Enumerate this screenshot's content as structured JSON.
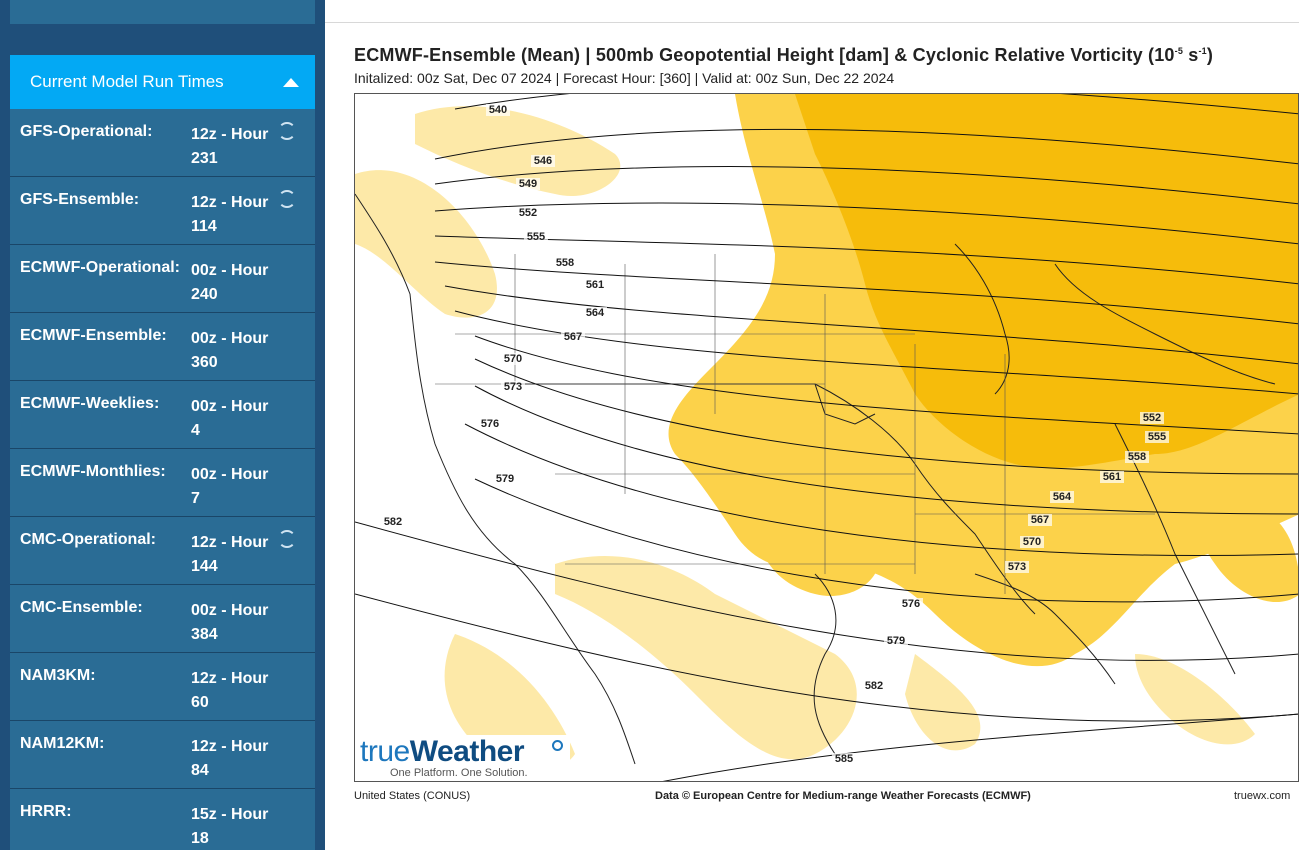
{
  "sidebar": {
    "panel_title": "Current Model Run Times",
    "models": [
      {
        "name": "GFS-Operational:",
        "run": "12z - Hour",
        "hour": "231",
        "loading": true
      },
      {
        "name": "GFS-Ensemble:",
        "run": "12z - Hour",
        "hour": "114",
        "loading": true
      },
      {
        "name": "ECMWF-Operational:",
        "run": "00z - Hour",
        "hour": "240",
        "loading": false
      },
      {
        "name": "ECMWF-Ensemble:",
        "run": "00z - Hour",
        "hour": "360",
        "loading": false
      },
      {
        "name": "ECMWF-Weeklies:",
        "run": "00z - Hour",
        "hour": "4",
        "loading": false
      },
      {
        "name": "ECMWF-Monthlies:",
        "run": "00z - Hour",
        "hour": "7",
        "loading": false
      },
      {
        "name": "CMC-Operational:",
        "run": "12z - Hour",
        "hour": "144",
        "loading": true
      },
      {
        "name": "CMC-Ensemble:",
        "run": "00z - Hour",
        "hour": "384",
        "loading": false
      },
      {
        "name": "NAM3KM:",
        "run": "12z - Hour",
        "hour": "60",
        "loading": false
      },
      {
        "name": "NAM12KM:",
        "run": "12z - Hour",
        "hour": "84",
        "loading": false
      },
      {
        "name": "HRRR:",
        "run": "15z - Hour",
        "hour": "18",
        "loading": false
      }
    ]
  },
  "chart": {
    "title": "ECMWF-Ensemble (Mean) | 500mb Geopotential Height [dam] & Cyclonic Relative Vorticity (10",
    "title_exp1": "-5",
    "title_unit": " s",
    "title_exp2": "-1",
    "title_close": ")",
    "subtitle": "Initalized: 00z Sat, Dec 07 2024  |  Forecast Hour: [360]  |  Valid at: 00z Sun, Dec 22 2024",
    "region": "United States (CONUS)",
    "credit": "Data © European Centre for Medium-range Weather Forecasts (ECMWF)",
    "site": "truewx.com",
    "logo_brand_a": "true",
    "logo_brand_b": "Weather",
    "logo_tagline": "One Platform. One Solution.",
    "contour_labels": [
      "540",
      "546",
      "549",
      "552",
      "555",
      "558",
      "561",
      "564",
      "567",
      "570",
      "573",
      "576",
      "579",
      "582",
      "552",
      "555",
      "558",
      "561",
      "564",
      "567",
      "570",
      "573",
      "576",
      "579",
      "582",
      "585"
    ],
    "colors": {
      "vort_light": "#fde9a8",
      "vort_mid": "#fcd24a",
      "vort_dark": "#f5b800",
      "sidebar": "#2a6c95",
      "header": "#03a9f4"
    }
  }
}
